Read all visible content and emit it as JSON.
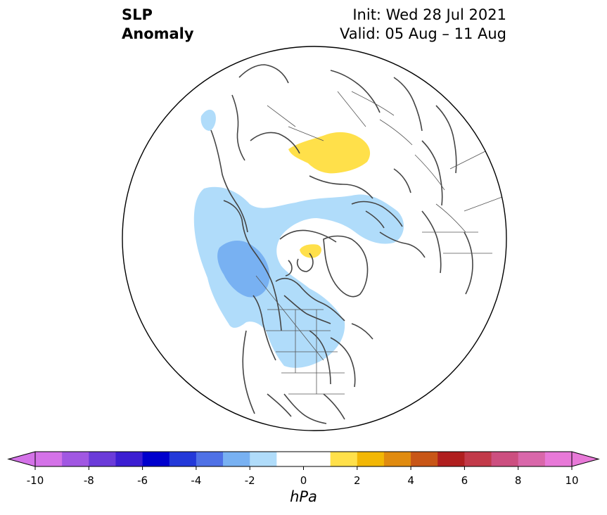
{
  "title": {
    "line1": "SLP",
    "line2": "Anomaly"
  },
  "init_label": "Init: Wed 28 Jul 2021",
  "valid_label": "Valid: 05 Aug – 11 Aug",
  "colorbar": {
    "unit": "hPa",
    "min": -10,
    "max": 10,
    "tick_values": [
      -10,
      -8,
      -6,
      -4,
      -2,
      0,
      2,
      4,
      6,
      8,
      10
    ],
    "tick_labels": [
      "-10",
      "-8",
      "-6",
      "-4",
      "-2",
      "0",
      "2",
      "4",
      "6",
      "8",
      "10"
    ],
    "bin_edges": [
      -9,
      -8,
      -7,
      -6,
      -5,
      -4,
      -3,
      -2,
      -1,
      1,
      2,
      3,
      4,
      5,
      6,
      7,
      8,
      9
    ],
    "colors": [
      "#d472e8",
      "#a157e2",
      "#6b3bd9",
      "#3c1ed2",
      "#0000cd",
      "#2339d9",
      "#4f71e6",
      "#78b1f2",
      "#b0dcfa",
      "#ffffff",
      "#ffe04a",
      "#f2b705",
      "#e08b10",
      "#c85617",
      "#b01f1f",
      "#c23a4a",
      "#cc4f80",
      "#d967aa",
      "#e879d8"
    ],
    "extend_low_color": "#d472e8",
    "extend_high_color": "#e879d8"
  },
  "map": {
    "projection": "north polar stereographic",
    "anomaly_regions": [
      {
        "name": "north-pacific-alaska",
        "value": -1.5,
        "color": "#b0dcfa"
      },
      {
        "name": "gulf-of-alaska-core",
        "value": -2.5,
        "color": "#78b1f2"
      },
      {
        "name": "central-canada",
        "value": -1.5,
        "color": "#b0dcfa"
      },
      {
        "name": "siberian-arctic",
        "value": -1.5,
        "color": "#b0dcfa"
      },
      {
        "name": "western-siberia",
        "value": 1.5,
        "color": "#ffe04a"
      },
      {
        "name": "canadian-archipelago",
        "value": 1.5,
        "color": "#ffe04a"
      },
      {
        "name": "pacific-northwest-small",
        "value": -1.5,
        "color": "#b0dcfa"
      }
    ]
  }
}
